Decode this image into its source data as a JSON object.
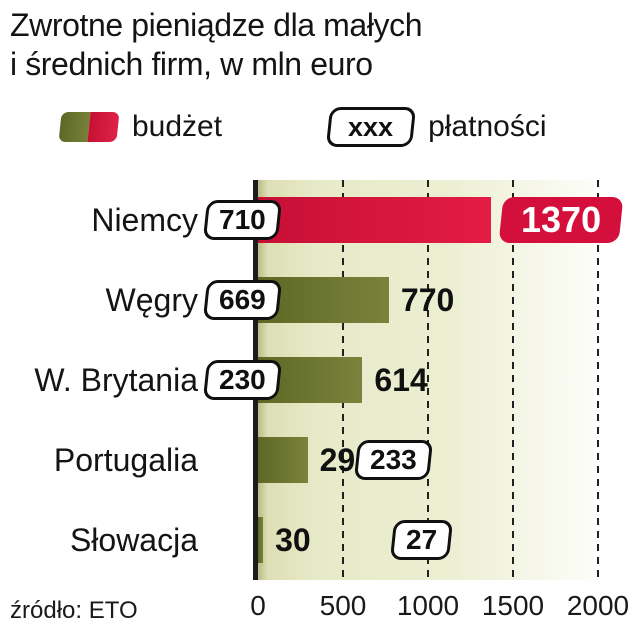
{
  "title": {
    "line1": "Zwrotne pieniądze dla małych",
    "line2": "i średnich firm, w mln euro"
  },
  "legend": {
    "budget_label": "budżet",
    "payments_box_label": "xxx",
    "payments_label": "płatności"
  },
  "source": "źródło: ETO",
  "colors": {
    "red": "#d50f3c",
    "olive": "#6b7530",
    "badge_text": "#ffffff",
    "plot_background": "#e9ecce",
    "text": "#141414"
  },
  "chart_data": {
    "type": "bar",
    "orientation": "horizontal",
    "title": "Zwrotne pieniądze dla małych i średnich firm, w mln euro",
    "categories": [
      "Niemcy",
      "Węgry",
      "W. Brytania",
      "Portugalia",
      "Słowacja"
    ],
    "series": [
      {
        "name": "budżet",
        "values": [
          1370,
          770,
          614,
          292,
          30
        ]
      },
      {
        "name": "płatności",
        "values": [
          710,
          669,
          230,
          233,
          27
        ]
      }
    ],
    "xlim": [
      0,
      2000
    ],
    "xticks": [
      0,
      500,
      1000,
      1500,
      2000
    ],
    "grid": "dashed-vertical",
    "legend_position": "top",
    "row_styles": [
      {
        "bar": "red",
        "value_style": "badge",
        "payment_side": "left"
      },
      {
        "bar": "olive",
        "value_style": "bold",
        "payment_side": "left"
      },
      {
        "bar": "olive",
        "value_style": "bold",
        "payment_side": "left"
      },
      {
        "bar": "olive",
        "value_style": "bold",
        "payment_side": "right",
        "payment_left": 356
      },
      {
        "bar": "olive",
        "value_style": "bold",
        "payment_side": "right",
        "payment_left": 392
      }
    ]
  }
}
